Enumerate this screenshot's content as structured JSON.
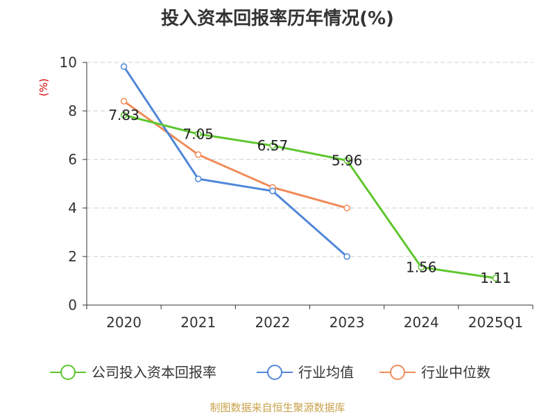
{
  "chart_data": {
    "type": "line",
    "title": "投入资本回报率历年情况(%)",
    "ylabel": "(%)",
    "categories": [
      "2020",
      "2021",
      "2022",
      "2023",
      "2024",
      "2025Q1"
    ],
    "yticks": [
      "0",
      "2",
      "4",
      "6",
      "8",
      "10"
    ],
    "ylim": [
      0,
      10
    ],
    "grid": true,
    "legend_position": "bottom",
    "series": [
      {
        "name": "公司投入资本回报率",
        "color": "#5ec62e",
        "values": [
          7.83,
          7.05,
          6.57,
          5.96,
          1.56,
          1.11
        ],
        "labels": [
          "7.83",
          "7.05",
          "6.57",
          "5.96",
          "1.56",
          "1.11"
        ]
      },
      {
        "name": "行业均值",
        "color": "#5087d8",
        "values": [
          9.83,
          5.2,
          4.7,
          2.0,
          null,
          null
        ]
      },
      {
        "name": "行业中位数",
        "color": "#f08c5a",
        "values": [
          8.4,
          6.2,
          4.85,
          4.0,
          null,
          null
        ]
      }
    ]
  },
  "source": "制图数据来自恒生聚源数据库",
  "colors": {
    "axis": "#333333",
    "grid": "#cccccc",
    "ylabel": "#dd0000"
  }
}
